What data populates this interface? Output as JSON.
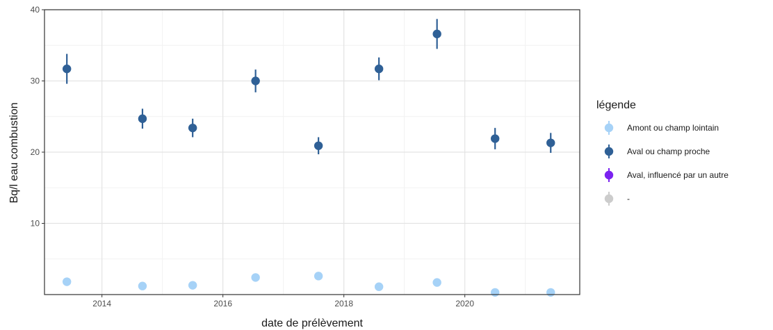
{
  "chart_data": {
    "type": "scatter",
    "xlabel": "date de prélèvement",
    "ylabel": "Bq/l eau combustion",
    "xlim": [
      2013.05,
      2021.9
    ],
    "ylim": [
      0,
      40
    ],
    "x_ticks": [
      2014,
      2016,
      2018,
      2020
    ],
    "y_ticks": [
      10,
      20,
      30,
      40
    ],
    "x_tick_labels": [
      "2014",
      "2016",
      "2018",
      "2020"
    ],
    "y_tick_labels": [
      "10",
      "20",
      "30",
      "40"
    ],
    "grid": true,
    "legend_position": "right",
    "legend_title": "légende",
    "series": [
      {
        "name": "Amont ou champ lointain",
        "color": "#a6d2f7",
        "points": [
          {
            "x": 2013.42,
            "y": 1.8,
            "err": 0
          },
          {
            "x": 2014.67,
            "y": 1.2,
            "err": 0
          },
          {
            "x": 2015.5,
            "y": 1.3,
            "err": 0
          },
          {
            "x": 2016.54,
            "y": 2.4,
            "err": 0
          },
          {
            "x": 2017.58,
            "y": 2.6,
            "err": 0
          },
          {
            "x": 2018.58,
            "y": 1.1,
            "err": 0
          },
          {
            "x": 2019.54,
            "y": 1.7,
            "err": 0
          },
          {
            "x": 2020.5,
            "y": 0.3,
            "err": 0
          },
          {
            "x": 2021.42,
            "y": 0.3,
            "err": 0
          }
        ]
      },
      {
        "name": "Aval ou champ proche",
        "color": "#2f6096",
        "points": [
          {
            "x": 2013.42,
            "y": 31.7,
            "err": 2.1
          },
          {
            "x": 2014.67,
            "y": 24.7,
            "err": 1.4
          },
          {
            "x": 2015.5,
            "y": 23.4,
            "err": 1.3
          },
          {
            "x": 2016.54,
            "y": 30.0,
            "err": 1.6
          },
          {
            "x": 2017.58,
            "y": 20.9,
            "err": 1.2
          },
          {
            "x": 2018.58,
            "y": 31.7,
            "err": 1.6
          },
          {
            "x": 2019.54,
            "y": 36.6,
            "err": 2.1
          },
          {
            "x": 2020.5,
            "y": 21.9,
            "err": 1.5
          },
          {
            "x": 2021.42,
            "y": 21.3,
            "err": 1.4
          }
        ]
      },
      {
        "name": "Aval, influencé par un autre",
        "color": "#7b22f0",
        "points": []
      },
      {
        "name": "-",
        "color": "#cccccc",
        "points": []
      }
    ]
  }
}
